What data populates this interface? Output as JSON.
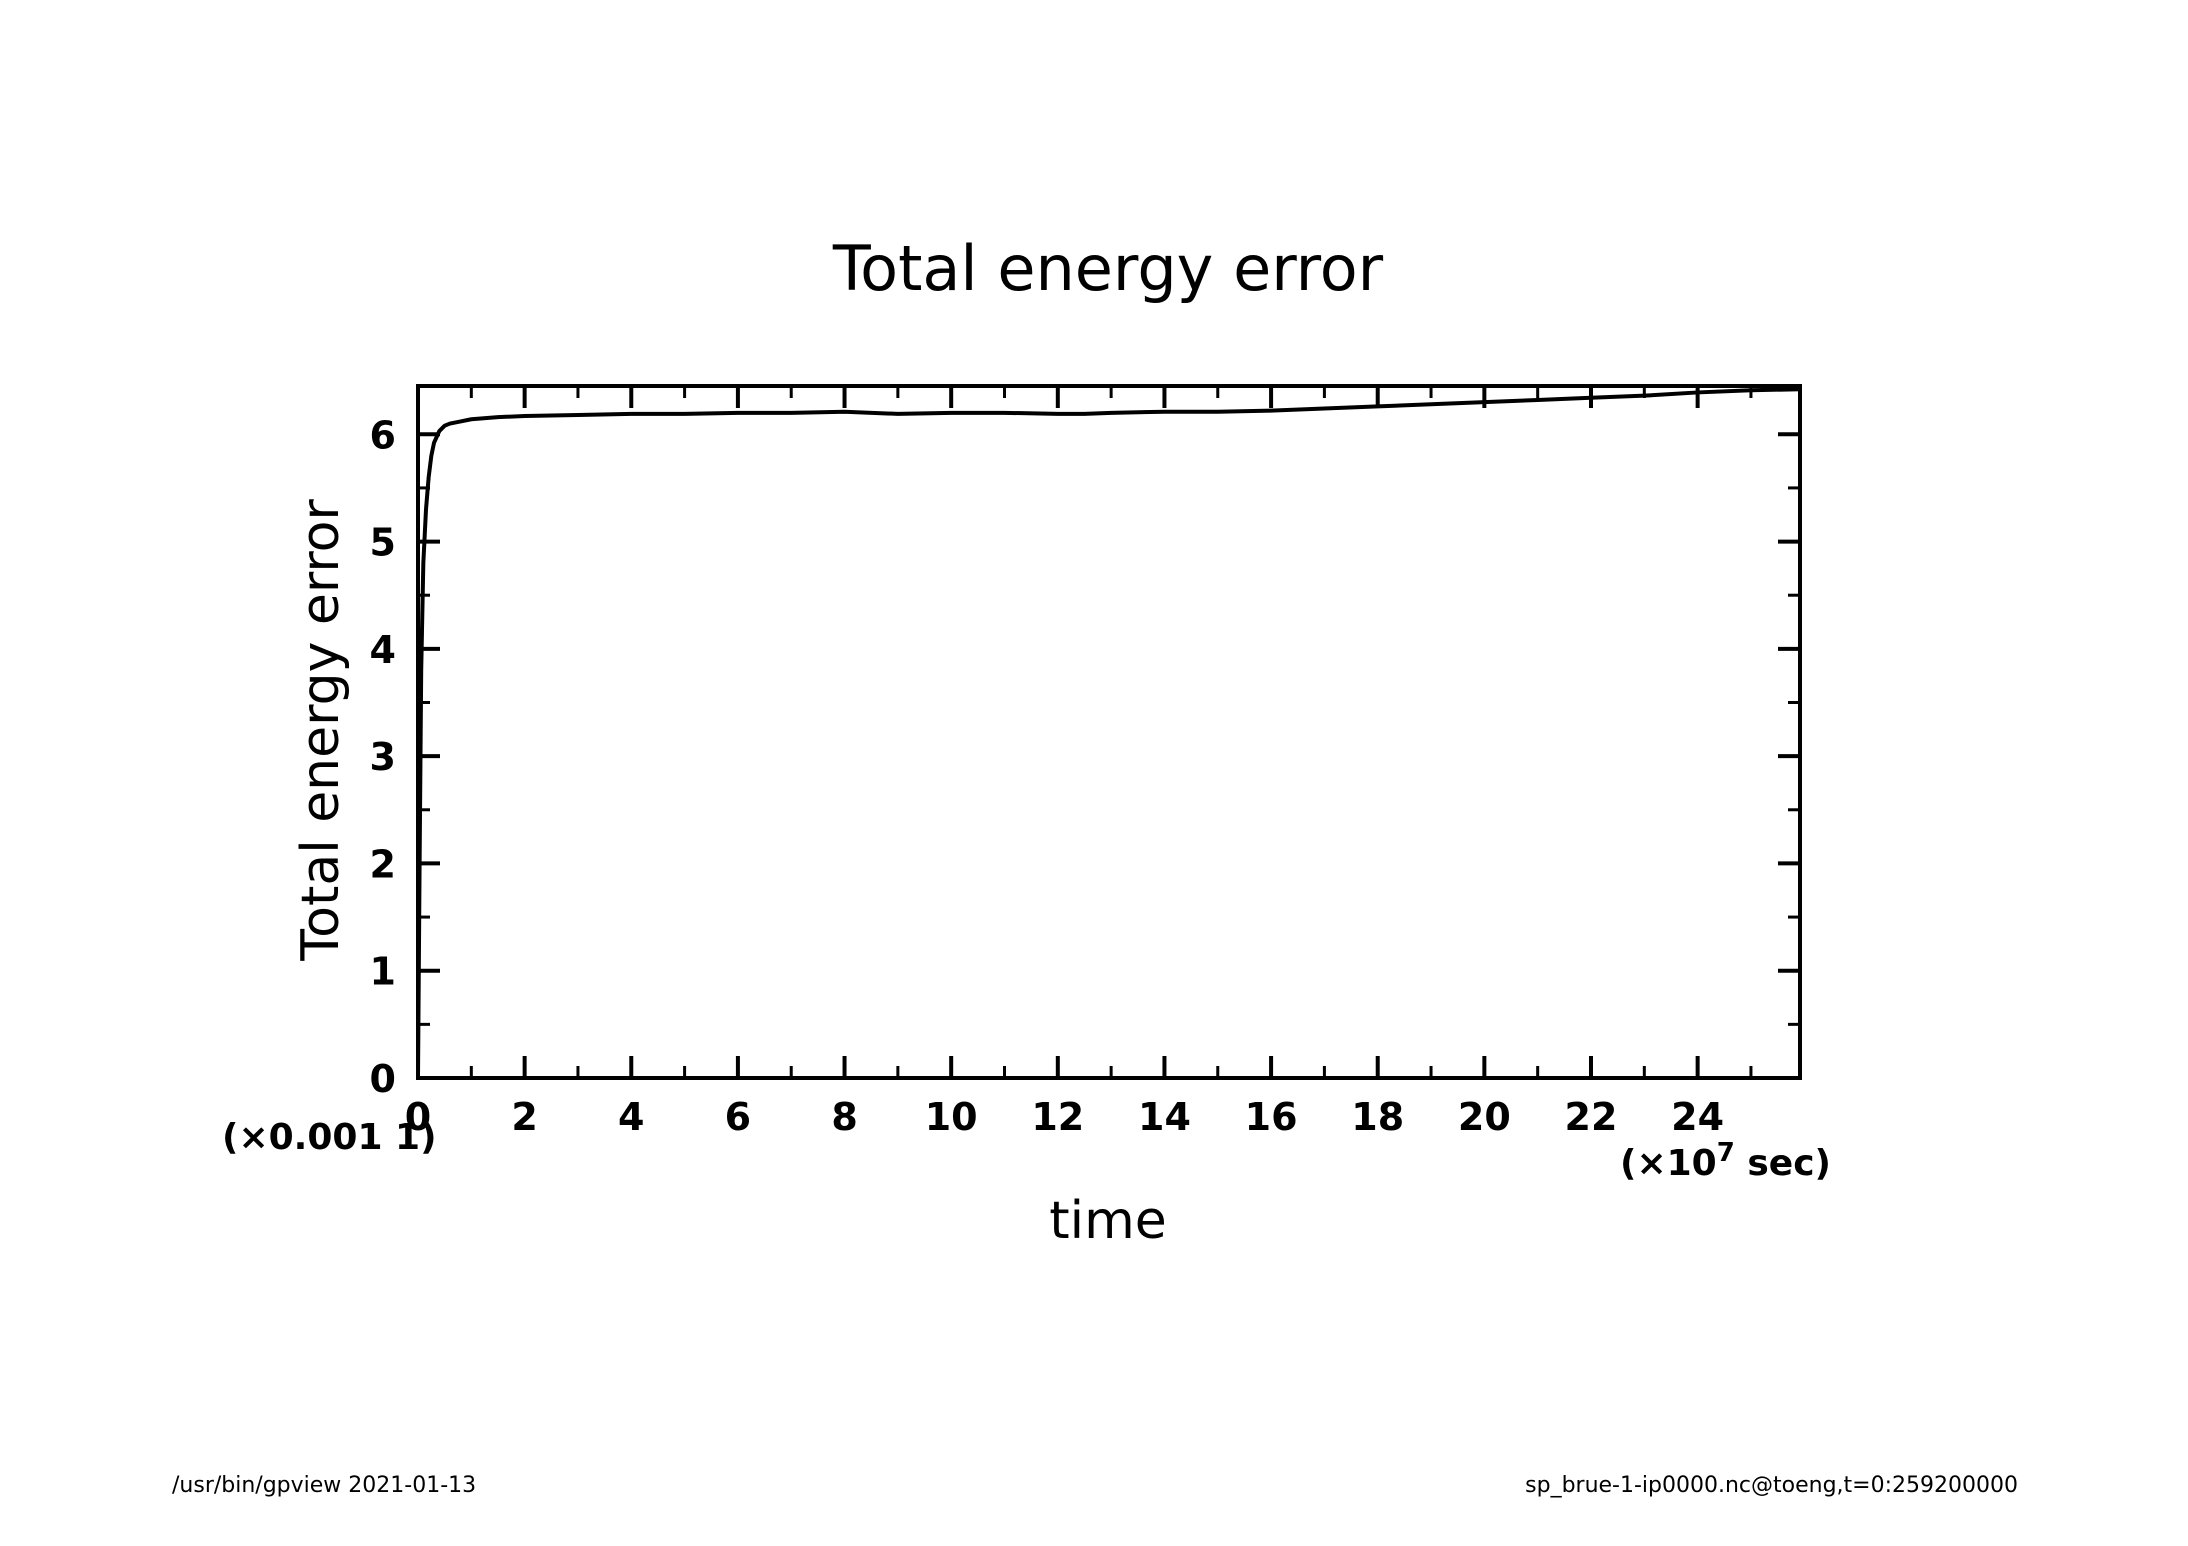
{
  "footer": {
    "left": "/usr/bin/gpview   2021-01-13",
    "right": "sp_brue-1-ip0000.nc@toeng,t=0:259200000"
  },
  "chart_data": {
    "type": "line",
    "title": "Total energy error",
    "xlabel": "time",
    "ylabel": "Total energy error",
    "x_multiplier_label": "(×10",
    "x_multiplier_exp": "7",
    "x_multiplier_unit": " sec)",
    "y_multiplier_label": "(×0.001  1)",
    "xlim": [
      0,
      25.92
    ],
    "ylim": [
      0,
      6.45
    ],
    "x_ticks": [
      0,
      2,
      4,
      6,
      8,
      10,
      12,
      14,
      16,
      18,
      20,
      22,
      24
    ],
    "x_tick_labels": [
      "0",
      "2",
      "4",
      "6",
      "8",
      "10",
      "12",
      "14",
      "16",
      "18",
      "20",
      "22",
      "24"
    ],
    "y_ticks": [
      0,
      1,
      2,
      3,
      4,
      5,
      6
    ],
    "y_tick_labels": [
      "0",
      "1",
      "2",
      "3",
      "4",
      "5",
      "6"
    ],
    "grid": false,
    "series": [
      {
        "color": "#000000",
        "x": [
          0,
          0.03,
          0.06,
          0.1,
          0.15,
          0.2,
          0.25,
          0.3,
          0.4,
          0.5,
          0.6,
          0.8,
          1.0,
          1.5,
          2,
          3,
          4,
          5,
          6,
          7,
          8,
          9,
          10,
          11,
          12,
          12.5,
          13,
          14,
          15,
          16,
          17,
          18,
          19,
          20,
          21,
          22,
          23,
          24,
          25,
          25.92
        ],
        "y": [
          0,
          2.0,
          3.8,
          4.8,
          5.3,
          5.6,
          5.8,
          5.92,
          6.03,
          6.08,
          6.1,
          6.12,
          6.14,
          6.16,
          6.17,
          6.18,
          6.19,
          6.19,
          6.2,
          6.2,
          6.21,
          6.19,
          6.2,
          6.2,
          6.19,
          6.19,
          6.2,
          6.21,
          6.21,
          6.22,
          6.24,
          6.26,
          6.28,
          6.3,
          6.32,
          6.34,
          6.36,
          6.39,
          6.41,
          6.42
        ]
      }
    ]
  }
}
